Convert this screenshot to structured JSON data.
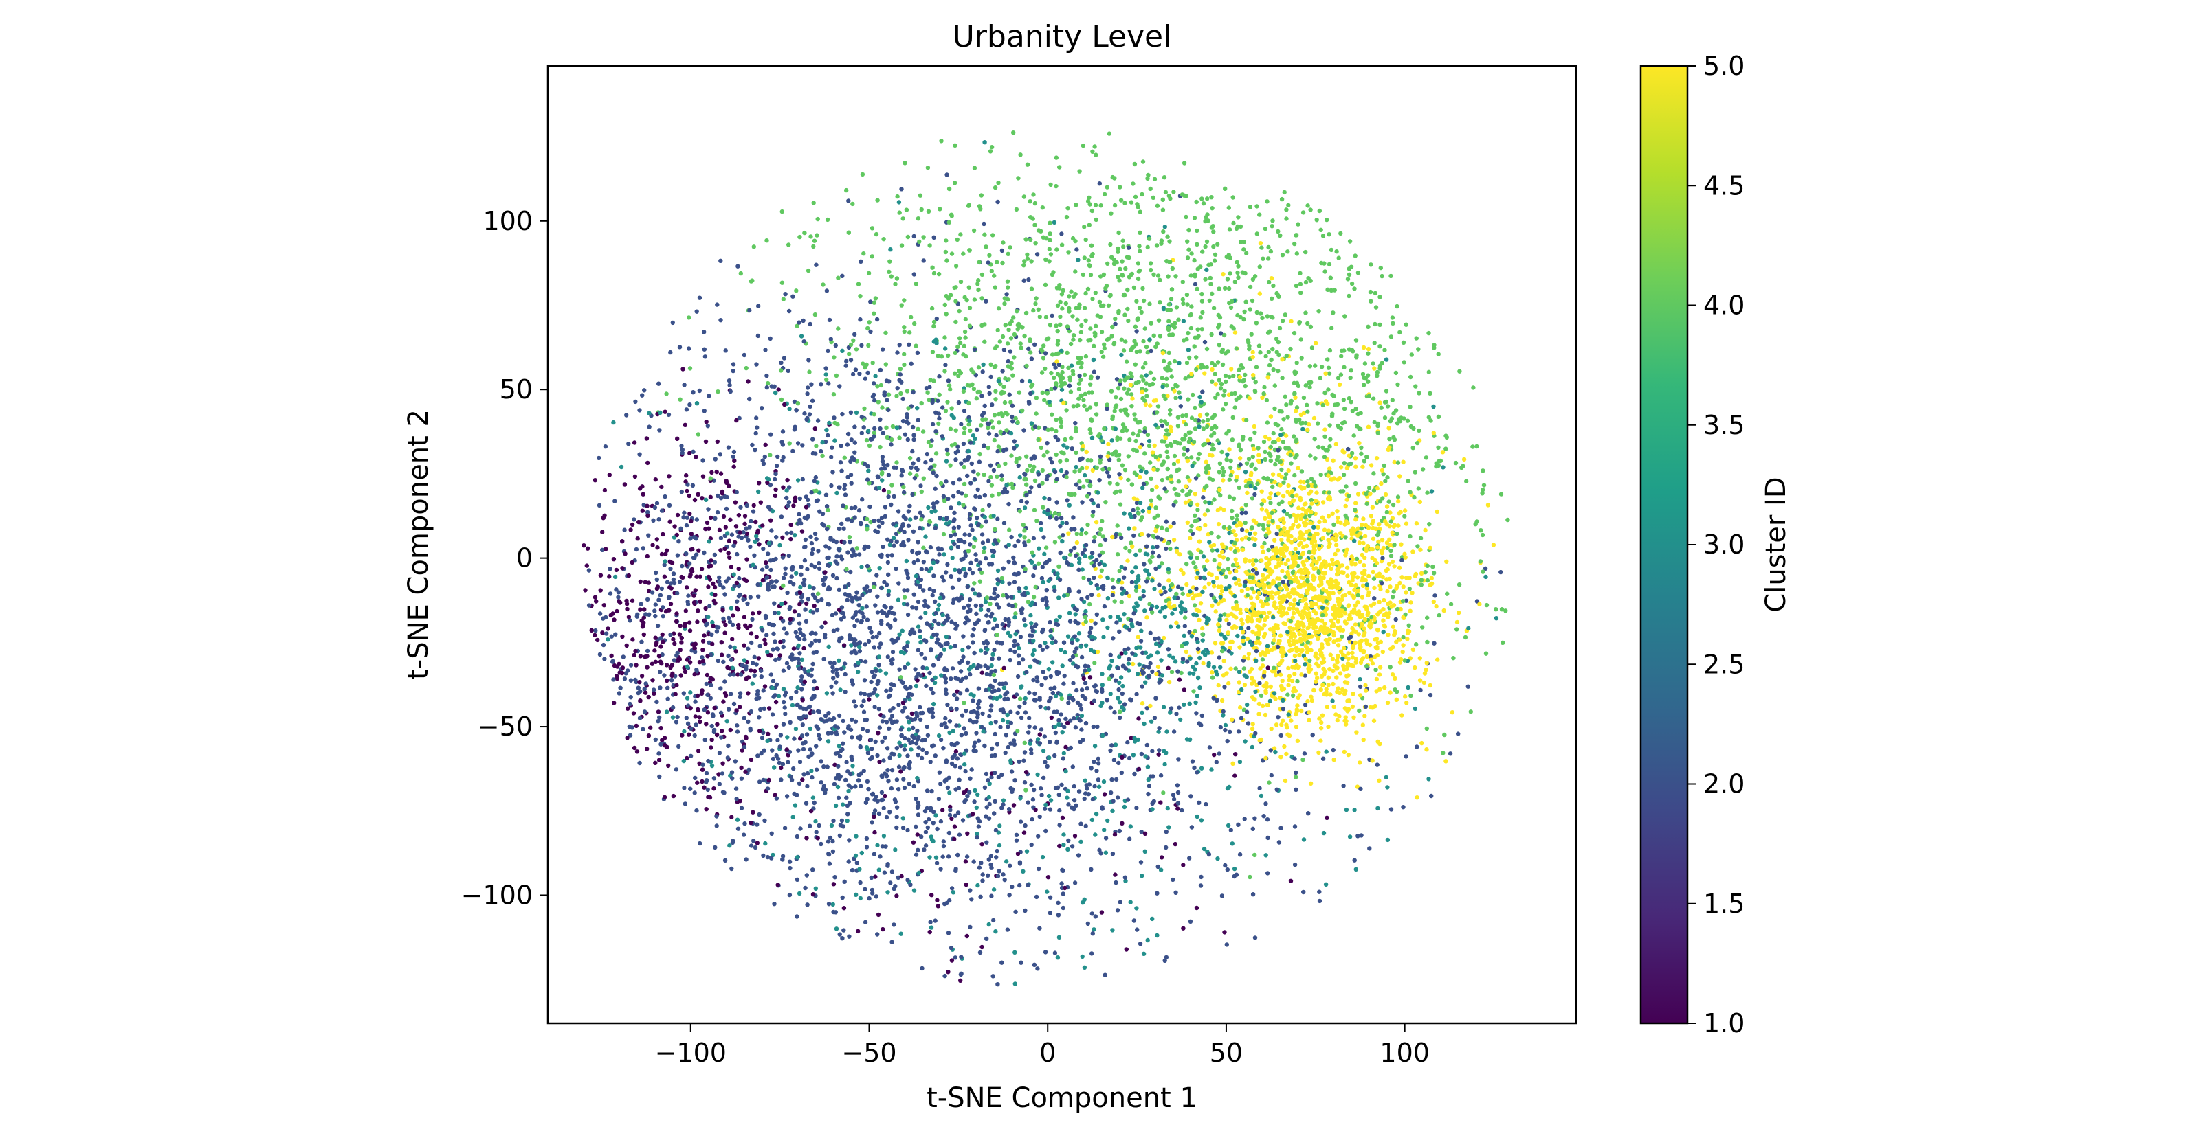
{
  "chart_data": {
    "type": "scatter",
    "title": "Urbanity Level",
    "xlabel": "t-SNE Component 1",
    "ylabel": "t-SNE Component 2",
    "xlim": [
      -140,
      148
    ],
    "ylim": [
      -138,
      146
    ],
    "xticks": [
      -100,
      -50,
      0,
      50,
      100
    ],
    "xtick_labels": [
      "−100",
      "−50",
      "0",
      "50",
      "100"
    ],
    "yticks": [
      -100,
      -50,
      0,
      50,
      100
    ],
    "ytick_labels": [
      "−100",
      "−50",
      "0",
      "50",
      "100"
    ],
    "grid": false,
    "colormap": "viridis",
    "colorbar": {
      "label": "Cluster ID",
      "range": [
        1.0,
        5.0
      ],
      "ticks": [
        1.0,
        1.5,
        2.0,
        2.5,
        3.0,
        3.5,
        4.0,
        4.5,
        5.0
      ],
      "tick_labels": [
        "1.0",
        "1.5",
        "2.0",
        "2.5",
        "3.0",
        "3.5",
        "4.0",
        "4.5",
        "5.0"
      ],
      "colors": [
        "#440154",
        "#482878",
        "#3e4989",
        "#31688e",
        "#26828e",
        "#1f9e89",
        "#35b779",
        "#6ece58",
        "#b5de2b",
        "#fde725"
      ]
    },
    "point_groups": [
      {
        "cluster": 1.0,
        "center": [
          -100,
          -20
        ],
        "spread": [
          18,
          30
        ],
        "count": 500
      },
      {
        "cluster": 1.0,
        "center": [
          -20,
          -80
        ],
        "spread": [
          40,
          30
        ],
        "count": 120
      },
      {
        "cluster": 2.0,
        "center": [
          -45,
          -20
        ],
        "spread": [
          45,
          45
        ],
        "count": 2400
      },
      {
        "cluster": 2.0,
        "center": [
          0,
          -60
        ],
        "spread": [
          60,
          35
        ],
        "count": 500
      },
      {
        "cluster": 3.0,
        "center": [
          -10,
          -30
        ],
        "spread": [
          55,
          50
        ],
        "count": 700
      },
      {
        "cluster": 3.0,
        "center": [
          30,
          -20
        ],
        "spread": [
          20,
          15
        ],
        "count": 200
      },
      {
        "cluster": 4.0,
        "center": [
          25,
          55
        ],
        "spread": [
          45,
          35
        ],
        "count": 1800
      },
      {
        "cluster": 4.0,
        "center": [
          80,
          20
        ],
        "spread": [
          25,
          35
        ],
        "count": 350
      },
      {
        "cluster": 5.0,
        "center": [
          75,
          -15
        ],
        "spread": [
          15,
          18
        ],
        "count": 1300
      },
      {
        "cluster": 5.0,
        "center": [
          60,
          15
        ],
        "spread": [
          25,
          25
        ],
        "count": 350
      }
    ]
  }
}
